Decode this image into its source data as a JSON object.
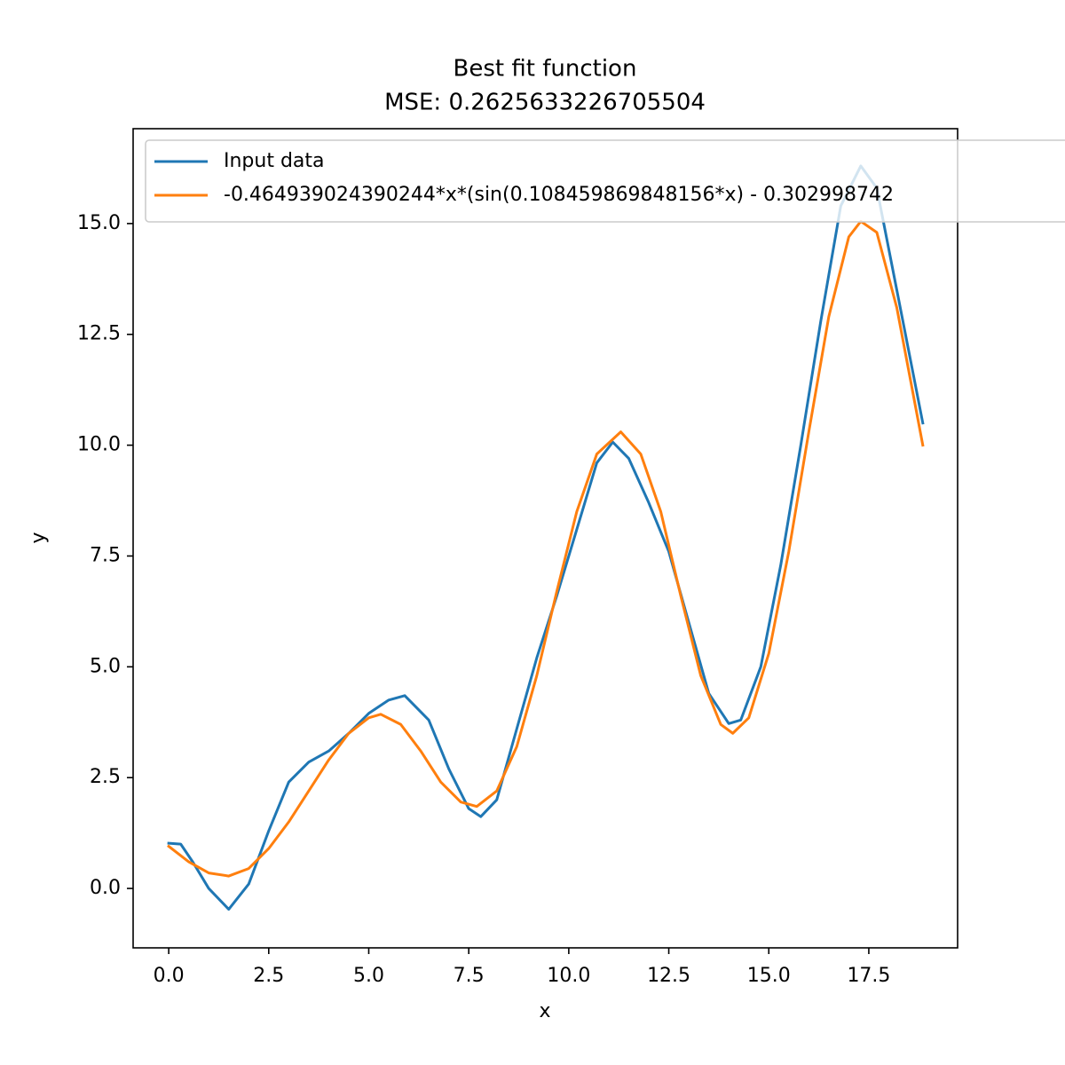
{
  "chart_data": {
    "type": "line",
    "title": "Best fit function",
    "subtitle": "MSE: 0.2625633226705504",
    "xlabel": "x",
    "ylabel": "y",
    "xlim": [
      -0.89,
      19.72
    ],
    "ylim": [
      -1.34,
      17.14
    ],
    "xticks": [
      {
        "value": 0,
        "label": "0.0"
      },
      {
        "value": 2.5,
        "label": "2.5"
      },
      {
        "value": 5,
        "label": "5.0"
      },
      {
        "value": 7.5,
        "label": "7.5"
      },
      {
        "value": 10,
        "label": "10.0"
      },
      {
        "value": 12.5,
        "label": "12.5"
      },
      {
        "value": 15,
        "label": "15.0"
      },
      {
        "value": 17.5,
        "label": "17.5"
      }
    ],
    "yticks": [
      {
        "value": 0,
        "label": "0.0"
      },
      {
        "value": 2.5,
        "label": "2.5"
      },
      {
        "value": 5,
        "label": "5.0"
      },
      {
        "value": 7.5,
        "label": "7.5"
      },
      {
        "value": 10,
        "label": "10.0"
      },
      {
        "value": 12.5,
        "label": "12.5"
      },
      {
        "value": 15,
        "label": "15.0"
      }
    ],
    "grid": false,
    "legend": "upper left",
    "series": [
      {
        "name": "Input data",
        "color": "#1f77b4",
        "x": [
          0,
          0.3,
          0.6,
          1.0,
          1.5,
          2.0,
          2.5,
          3.0,
          3.5,
          4.0,
          4.5,
          5.0,
          5.5,
          5.9,
          6.5,
          7.0,
          7.5,
          7.8,
          8.2,
          8.7,
          9.2,
          9.7,
          10.2,
          10.7,
          11.1,
          11.5,
          12.0,
          12.5,
          13.0,
          13.5,
          14.0,
          14.3,
          14.8,
          15.3,
          15.8,
          16.3,
          16.8,
          17.3,
          17.7,
          18.2,
          18.85
        ],
        "values": [
          1.02,
          1.0,
          0.6,
          0.0,
          -0.47,
          0.1,
          1.3,
          2.4,
          2.85,
          3.1,
          3.5,
          3.95,
          4.25,
          4.35,
          3.8,
          2.7,
          1.8,
          1.62,
          2.0,
          3.6,
          5.2,
          6.6,
          8.1,
          9.6,
          10.07,
          9.7,
          8.7,
          7.6,
          6.0,
          4.4,
          3.72,
          3.8,
          5.0,
          7.3,
          10.0,
          12.8,
          15.4,
          16.3,
          15.8,
          13.5,
          10.5
        ]
      },
      {
        "name": "-0.464939024390244*x*(sin(0.108459869848156*x) - 0.302998742",
        "color": "#ff7f0e",
        "x": [
          0,
          0.5,
          1.0,
          1.5,
          2.0,
          2.5,
          3.0,
          3.5,
          4.0,
          4.5,
          5.0,
          5.3,
          5.8,
          6.3,
          6.8,
          7.3,
          7.7,
          8.2,
          8.7,
          9.2,
          9.7,
          10.2,
          10.7,
          11.3,
          11.8,
          12.3,
          12.8,
          13.3,
          13.8,
          14.1,
          14.5,
          15.0,
          15.5,
          16.0,
          16.5,
          17.0,
          17.3,
          17.7,
          18.2,
          18.85
        ],
        "values": [
          0.95,
          0.6,
          0.35,
          0.28,
          0.45,
          0.9,
          1.5,
          2.2,
          2.9,
          3.5,
          3.85,
          3.93,
          3.7,
          3.1,
          2.4,
          1.95,
          1.85,
          2.2,
          3.2,
          4.8,
          6.7,
          8.5,
          9.8,
          10.3,
          9.8,
          8.5,
          6.6,
          4.8,
          3.7,
          3.5,
          3.85,
          5.3,
          7.6,
          10.3,
          12.9,
          14.7,
          15.05,
          14.8,
          13.1,
          10.0
        ]
      }
    ]
  }
}
